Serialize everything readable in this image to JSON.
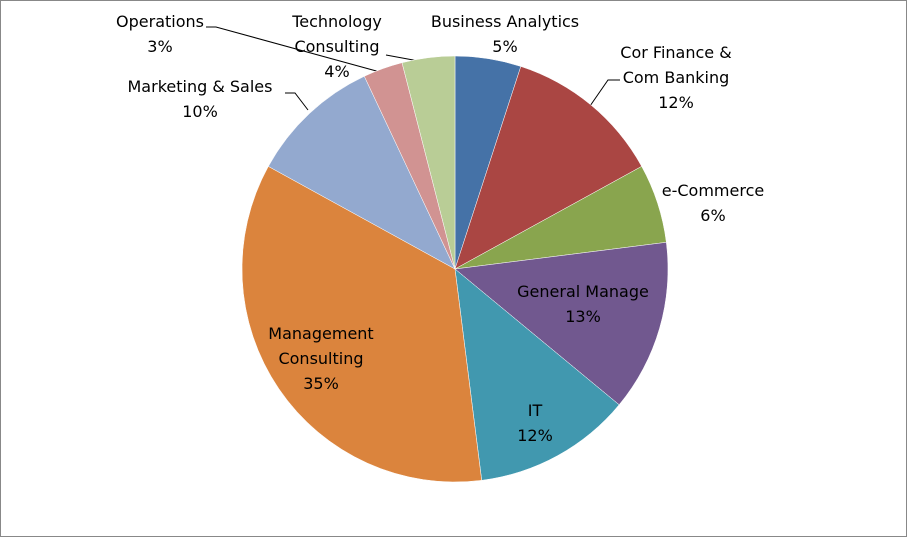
{
  "chart_data": {
    "type": "pie",
    "categories": [
      "Business Analytics",
      "Cor Finance &\nCom Banking",
      "e-Commerce",
      "General Manage",
      "IT",
      "Management\nConsulting",
      "Marketing & Sales",
      "Operations",
      "Technology\nConsulting"
    ],
    "values": [
      5,
      12,
      6,
      13,
      12,
      35,
      10,
      3,
      4
    ],
    "value_labels": [
      "5%",
      "12%",
      "6%",
      "13%",
      "12%",
      "35%",
      "10%",
      "3%",
      "4%"
    ],
    "colors": [
      "#4572a7",
      "#aa4643",
      "#89a54e",
      "#71588f",
      "#4198af",
      "#db843d",
      "#93a9cf",
      "#d19392",
      "#b9cd96"
    ]
  }
}
